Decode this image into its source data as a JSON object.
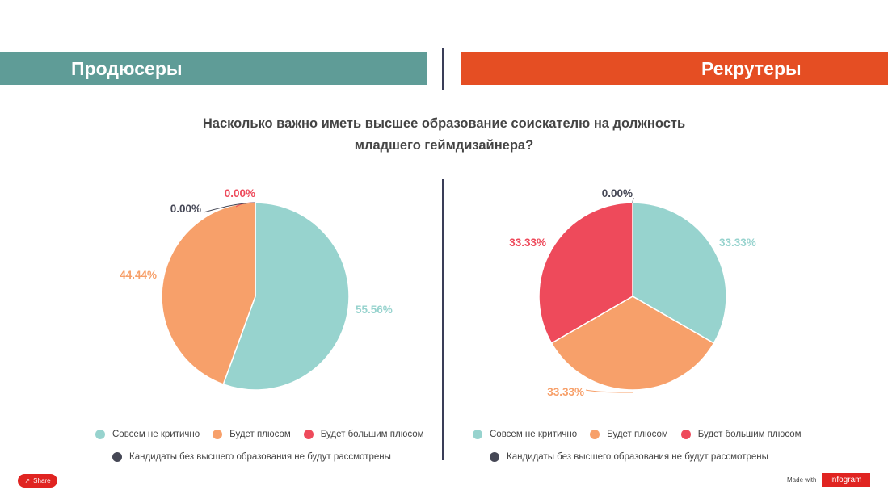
{
  "headers": {
    "left": "Продюсеры",
    "right": "Рекрутеры"
  },
  "question": {
    "line1": "Насколько важно иметь высшее образование соискателю на должность",
    "line2": "младшего геймдизайнера?"
  },
  "colors": {
    "teal": "#97d3ce",
    "orange": "#f7a06a",
    "red": "#ee4a5b",
    "dark": "#454755",
    "header_left": "#5f9c97",
    "header_right": "#e54e23"
  },
  "legend": {
    "item1": "Совсем не критично",
    "item2": "Будет плюсом",
    "item3": "Будет большим плюсом",
    "item4": "Кандидаты без высшего образования не будут рассмотрены"
  },
  "chart_data": [
    {
      "type": "pie",
      "categories": [
        "Совсем не критично",
        "Будет плюсом",
        "Будет большим плюсом",
        "Кандидаты без высшего образования не будут рассмотрены"
      ],
      "values": [
        55.56,
        44.44,
        0.0,
        0.0
      ],
      "labels": [
        "55.56%",
        "44.44%",
        "0.00%",
        "0.00%"
      ],
      "legend": "bottom"
    },
    {
      "type": "pie",
      "categories": [
        "Совсем не критично",
        "Будет плюсом",
        "Будет большим плюсом",
        "Кандидаты без высшего образования не будут рассмотрены"
      ],
      "values": [
        33.33,
        33.33,
        33.33,
        0.0
      ],
      "labels": [
        "33.33%",
        "33.33%",
        "33.33%",
        "0.00%"
      ],
      "legend": "bottom"
    }
  ],
  "footer": {
    "share": "Share",
    "made_with": "Made with",
    "brand": "infogram"
  }
}
